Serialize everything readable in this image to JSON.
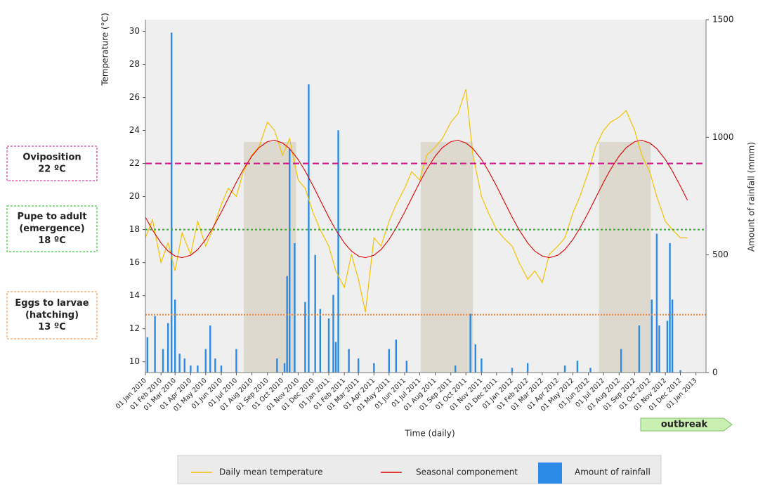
{
  "chart_data": {
    "type": "line",
    "y_label": "Temperature (°C)",
    "y2_label": "Amount of rainfall (mmm)",
    "x_label": "Time (daily)",
    "xlim": [
      "2010-01-01",
      "2013-01-21"
    ],
    "ylim": [
      9.35,
      30.7
    ],
    "yticks": [
      10,
      12,
      14,
      16,
      18,
      20,
      22,
      24,
      26,
      28,
      30
    ],
    "y2lim": [
      0,
      1500
    ],
    "y2ticks": [
      0,
      500,
      1000,
      1500
    ],
    "xticks": [
      {
        "value": "2010-01-01",
        "label": "01 Jan 2010"
      },
      {
        "value": "2010-02-01",
        "label": "01 Feb 2010"
      },
      {
        "value": "2010-03-01",
        "label": "01 Mar 2010"
      },
      {
        "value": "2010-04-01",
        "label": "01 Apr 2010"
      },
      {
        "value": "2010-05-01",
        "label": "01 May 2010"
      },
      {
        "value": "2010-06-01",
        "label": "01 Jun 2010"
      },
      {
        "value": "2010-07-01",
        "label": "01 Jul 2010"
      },
      {
        "value": "2010-08-01",
        "label": "01 Aug 2010"
      },
      {
        "value": "2010-09-01",
        "label": "01 Sep 2010"
      },
      {
        "value": "2010-10-01",
        "label": "01 Oct 2010"
      },
      {
        "value": "2010-11-01",
        "label": "01 Nov 2010"
      },
      {
        "value": "2010-12-01",
        "label": "01 Dec 2010"
      },
      {
        "value": "2011-01-01",
        "label": "01 Jan 2011"
      },
      {
        "value": "2011-02-01",
        "label": "01 Feb 2011"
      },
      {
        "value": "2011-03-01",
        "label": "01 Mar 2011"
      },
      {
        "value": "2011-04-01",
        "label": "01 Apr 2011"
      },
      {
        "value": "2011-05-01",
        "label": "01 May 2011"
      },
      {
        "value": "2011-06-01",
        "label": "01 Jun 2011"
      },
      {
        "value": "2011-07-01",
        "label": "01 Jul 2011"
      },
      {
        "value": "2011-08-01",
        "label": "01 Aug 2011"
      },
      {
        "value": "2011-09-01",
        "label": "01 Sep 2011"
      },
      {
        "value": "2011-10-01",
        "label": "01 Oct 2011"
      },
      {
        "value": "2011-11-01",
        "label": "01 Nov 2011"
      },
      {
        "value": "2011-12-01",
        "label": "01 Dec 2011"
      },
      {
        "value": "2012-01-01",
        "label": "01 Jan 2012"
      },
      {
        "value": "2012-02-01",
        "label": "01 Feb 2012"
      },
      {
        "value": "2012-03-01",
        "label": "01 Mar 2012"
      },
      {
        "value": "2012-04-01",
        "label": "01 Apr 2012"
      },
      {
        "value": "2012-05-01",
        "label": "01 May 2012"
      },
      {
        "value": "2012-06-01",
        "label": "01 Jun 2012"
      },
      {
        "value": "2012-07-01",
        "label": "01 Jul 2012"
      },
      {
        "value": "2012-08-01",
        "label": "01 Aug 2012"
      },
      {
        "value": "2012-09-01",
        "label": "01 Sep 2012"
      },
      {
        "value": "2012-10-01",
        "label": "01 Oct 2012"
      },
      {
        "value": "2012-11-01",
        "label": "01 Nov 2012"
      },
      {
        "value": "2012-12-01",
        "label": "01 Dec 2012"
      },
      {
        "value": "2013-01-01",
        "label": "01 Jan 2013"
      }
    ],
    "x": [
      "2010-01-01",
      "2010-01-15",
      "2010-02-01",
      "2010-02-15",
      "2010-03-01",
      "2010-03-15",
      "2010-04-01",
      "2010-04-15",
      "2010-05-01",
      "2010-05-15",
      "2010-06-01",
      "2010-06-15",
      "2010-07-01",
      "2010-07-15",
      "2010-08-01",
      "2010-08-15",
      "2010-09-01",
      "2010-09-15",
      "2010-10-01",
      "2010-10-15",
      "2010-11-01",
      "2010-11-15",
      "2010-12-01",
      "2010-12-15",
      "2011-01-01",
      "2011-01-15",
      "2011-02-01",
      "2011-02-15",
      "2011-03-01",
      "2011-03-15",
      "2011-04-01",
      "2011-04-15",
      "2011-05-01",
      "2011-05-15",
      "2011-06-01",
      "2011-06-15",
      "2011-07-01",
      "2011-07-15",
      "2011-08-01",
      "2011-08-15",
      "2011-09-01",
      "2011-09-15",
      "2011-10-01",
      "2011-10-15",
      "2011-11-01",
      "2011-11-15",
      "2011-12-01",
      "2011-12-15",
      "2012-01-01",
      "2012-01-15",
      "2012-02-01",
      "2012-02-15",
      "2012-03-01",
      "2012-03-15",
      "2012-04-01",
      "2012-04-15",
      "2012-05-01",
      "2012-05-15",
      "2012-06-01",
      "2012-06-15",
      "2012-07-01",
      "2012-07-15",
      "2012-08-01",
      "2012-08-15",
      "2012-09-01",
      "2012-09-15",
      "2012-10-01",
      "2012-10-15",
      "2012-11-01",
      "2012-11-15",
      "2012-12-01",
      "2012-12-15"
    ],
    "series": [
      {
        "name": "Daily mean temperature",
        "color": "#f2c200",
        "values": [
          17.5,
          18.6,
          16.0,
          17.2,
          15.5,
          17.8,
          16.5,
          18.5,
          17.0,
          18.0,
          19.5,
          20.5,
          20.0,
          21.5,
          22.5,
          23.0,
          24.5,
          24.0,
          22.5,
          23.5,
          21.0,
          20.5,
          19.0,
          18.0,
          17.0,
          15.5,
          14.5,
          16.5,
          15.0,
          13.0,
          17.5,
          17.0,
          18.5,
          19.5,
          20.5,
          21.5,
          21.0,
          22.5,
          23.0,
          23.5,
          24.5,
          25.0,
          26.5,
          22.5,
          20.0,
          19.0,
          18.0,
          17.5,
          17.0,
          16.0,
          15.0,
          15.5,
          14.8,
          16.5,
          17.0,
          17.5,
          19.0,
          20.0,
          21.5,
          23.0,
          24.0,
          24.5,
          24.8,
          25.2,
          24.0,
          22.5,
          21.5,
          20.0,
          18.5,
          18.0,
          17.5,
          17.5
        ]
      },
      {
        "name": "Seasonal componement",
        "color": "#e00000",
        "values": [
          18.75,
          17.98,
          17.19,
          16.7,
          16.4,
          16.3,
          16.45,
          16.79,
          17.4,
          18.09,
          19.05,
          19.9,
          20.86,
          21.64,
          22.45,
          22.95,
          23.32,
          23.4,
          23.24,
          22.9,
          22.24,
          21.54,
          20.63,
          19.78,
          18.75,
          17.98,
          17.19,
          16.7,
          16.4,
          16.3,
          16.45,
          16.79,
          17.4,
          18.09,
          19.05,
          19.9,
          20.86,
          21.64,
          22.45,
          22.95,
          23.32,
          23.4,
          23.24,
          22.9,
          22.24,
          21.54,
          20.63,
          19.78,
          18.75,
          17.98,
          17.19,
          16.7,
          16.4,
          16.3,
          16.45,
          16.79,
          17.4,
          18.09,
          19.05,
          19.9,
          20.86,
          21.64,
          22.45,
          22.95,
          23.32,
          23.4,
          23.24,
          22.9,
          22.24,
          21.54,
          20.63,
          19.78
        ]
      },
      {
        "name": "Amount of rainfall",
        "color": "#2a8ae6",
        "axis": "y2",
        "kind": "bar",
        "x": [
          "2010-01-05",
          "2010-01-20",
          "2010-02-05",
          "2010-02-15",
          "2010-02-22",
          "2010-03-01",
          "2010-03-10",
          "2010-03-20",
          "2010-04-01",
          "2010-04-15",
          "2010-05-01",
          "2010-05-10",
          "2010-05-20",
          "2010-06-01",
          "2010-07-01",
          "2010-09-20",
          "2010-10-05",
          "2010-10-10",
          "2010-10-15",
          "2010-10-25",
          "2010-11-15",
          "2010-11-22",
          "2010-12-05",
          "2010-12-15",
          "2011-01-01",
          "2011-01-10",
          "2011-01-15",
          "2011-01-20",
          "2011-02-10",
          "2011-03-01",
          "2011-04-01",
          "2011-05-01",
          "2011-05-15",
          "2011-06-05",
          "2011-09-10",
          "2011-10-10",
          "2011-10-20",
          "2011-11-01",
          "2012-01-01",
          "2012-02-01",
          "2012-04-15",
          "2012-05-10",
          "2012-06-05",
          "2012-08-05",
          "2012-09-10",
          "2012-10-05",
          "2012-10-15",
          "2012-10-20",
          "2012-11-05",
          "2012-11-10",
          "2012-11-15",
          "2012-12-01"
        ],
        "values": [
          150,
          240,
          100,
          210,
          1445,
          310,
          80,
          60,
          30,
          30,
          100,
          200,
          60,
          30,
          100,
          60,
          40,
          410,
          950,
          550,
          300,
          1225,
          500,
          270,
          230,
          330,
          130,
          1030,
          100,
          60,
          40,
          100,
          140,
          50,
          30,
          250,
          120,
          60,
          20,
          40,
          30,
          50,
          20,
          100,
          200,
          310,
          590,
          200,
          220,
          550,
          310,
          10
        ]
      }
    ],
    "shaded_periods": [
      {
        "start": "2010-07-16",
        "end": "2010-10-28",
        "top": 23.3
      },
      {
        "start": "2011-07-03",
        "end": "2011-10-15",
        "top": 23.3
      },
      {
        "start": "2012-06-22",
        "end": "2012-10-03",
        "top": 23.3
      }
    ],
    "thresholds": [
      {
        "lines": [
          "Oviposition",
          "22 ºC"
        ],
        "value": 22,
        "color": "#d6168c",
        "dash": "9,5"
      },
      {
        "lines": [
          "Pupe to adult",
          "(emergence)",
          "18 ºC"
        ],
        "value": 18,
        "color": "#19c019",
        "dash": "3,3"
      },
      {
        "lines": [
          "Eggs to larvae",
          "(hatching)",
          "13 ºC"
        ],
        "value": 12.85,
        "color": "#f0883a",
        "dash": "2,2"
      }
    ],
    "outbreak_label": "outbreak"
  }
}
